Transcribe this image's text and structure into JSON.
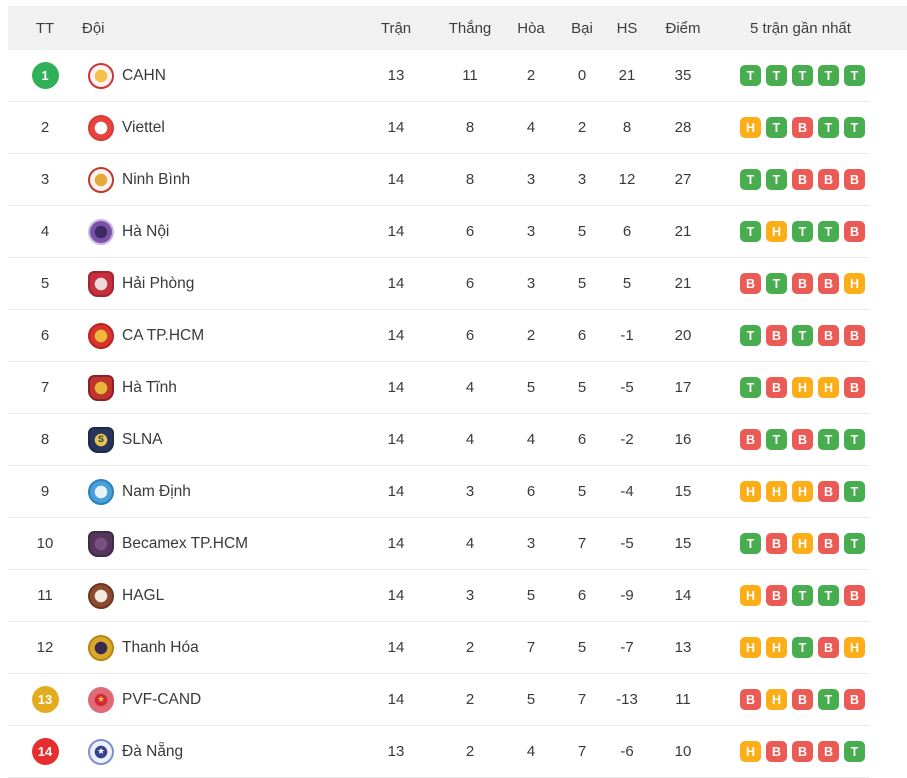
{
  "header": {
    "tt": "TT",
    "team": "Đội",
    "played": "Trận",
    "won": "Thắng",
    "drawn": "Hòa",
    "lost": "Bại",
    "gd": "HS",
    "points": "Điểm",
    "form": "5 trận gần nhất"
  },
  "form_colors": {
    "T": "#47ad4e",
    "H": "#fbae17",
    "B": "#ea5b55"
  },
  "form_labels": {
    "T": "win",
    "H": "draw",
    "B": "loss"
  },
  "pos_badge_colors": {
    "green": "#31b157",
    "gold": "#e3ac1e",
    "red": "#e62e2e"
  },
  "rows": [
    {
      "pos": "1",
      "pos_badge": "green",
      "team": "CAHN",
      "played": "13",
      "won": "11",
      "drawn": "2",
      "lost": "0",
      "gd": "21",
      "points": "35",
      "form": [
        "T",
        "T",
        "T",
        "T",
        "T"
      ],
      "logo": {
        "shape": "circle",
        "ring": "#cf3339",
        "outer": "#fdf3f0",
        "inner": "#f5c04a",
        "glyph": "",
        "glyph_color": ""
      }
    },
    {
      "pos": "2",
      "pos_badge": null,
      "team": "Viettel",
      "played": "14",
      "won": "8",
      "drawn": "4",
      "lost": "2",
      "gd": "8",
      "points": "28",
      "form": [
        "H",
        "T",
        "B",
        "T",
        "T"
      ],
      "logo": {
        "shape": "circle",
        "ring": "#d93a36",
        "outer": "#e8443f",
        "inner": "#ffffff",
        "glyph": "",
        "glyph_color": ""
      }
    },
    {
      "pos": "3",
      "pos_badge": null,
      "team": "Ninh Bình",
      "played": "14",
      "won": "8",
      "drawn": "3",
      "lost": "3",
      "gd": "12",
      "points": "27",
      "form": [
        "T",
        "T",
        "B",
        "B",
        "B"
      ],
      "logo": {
        "shape": "circle",
        "ring": "#c0392b",
        "outer": "#faf2ee",
        "inner": "#e3a93c",
        "glyph": "",
        "glyph_color": ""
      }
    },
    {
      "pos": "4",
      "pos_badge": null,
      "team": "Hà Nội",
      "played": "14",
      "won": "6",
      "drawn": "3",
      "lost": "5",
      "gd": "6",
      "points": "21",
      "form": [
        "T",
        "H",
        "T",
        "T",
        "B"
      ],
      "logo": {
        "shape": "circle",
        "ring": "#c9b6e4",
        "outer": "#7b52a8",
        "inner": "#3b2a63",
        "glyph": "",
        "glyph_color": ""
      }
    },
    {
      "pos": "5",
      "pos_badge": null,
      "team": "Hải Phòng",
      "played": "14",
      "won": "6",
      "drawn": "3",
      "lost": "5",
      "gd": "5",
      "points": "21",
      "form": [
        "B",
        "T",
        "B",
        "B",
        "H"
      ],
      "logo": {
        "shape": "shield",
        "ring": "#a02531",
        "outer": "#c6303e",
        "inner": "#f3dada",
        "glyph": "",
        "glyph_color": ""
      }
    },
    {
      "pos": "6",
      "pos_badge": null,
      "team": "CA TP.HCM",
      "played": "14",
      "won": "6",
      "drawn": "2",
      "lost": "6",
      "gd": "-1",
      "points": "20",
      "form": [
        "T",
        "B",
        "T",
        "B",
        "B"
      ],
      "logo": {
        "shape": "circle",
        "ring": "#b3271f",
        "outer": "#d8332f",
        "inner": "#f0b93a",
        "glyph": "",
        "glyph_color": ""
      }
    },
    {
      "pos": "7",
      "pos_badge": null,
      "team": "Hà Tĩnh",
      "played": "14",
      "won": "4",
      "drawn": "5",
      "lost": "5",
      "gd": "-5",
      "points": "17",
      "form": [
        "T",
        "B",
        "H",
        "H",
        "B"
      ],
      "logo": {
        "shape": "shield",
        "ring": "#8e1f24",
        "outer": "#c03430",
        "inner": "#e8b53a",
        "glyph": "",
        "glyph_color": ""
      }
    },
    {
      "pos": "8",
      "pos_badge": null,
      "team": "SLNA",
      "played": "14",
      "won": "4",
      "drawn": "4",
      "lost": "6",
      "gd": "-2",
      "points": "16",
      "form": [
        "B",
        "T",
        "B",
        "T",
        "T"
      ],
      "logo": {
        "shape": "shield",
        "ring": "#1d2a4a",
        "outer": "#27355c",
        "inner": "#e3c64a",
        "glyph": "S",
        "glyph_color": "#27355c"
      }
    },
    {
      "pos": "9",
      "pos_badge": null,
      "team": "Nam Định",
      "played": "14",
      "won": "3",
      "drawn": "6",
      "lost": "5",
      "gd": "-4",
      "points": "15",
      "form": [
        "H",
        "H",
        "H",
        "B",
        "T"
      ],
      "logo": {
        "shape": "circle",
        "ring": "#2f7fbf",
        "outer": "#4aa0d8",
        "inner": "#e8f3fb",
        "glyph": "",
        "glyph_color": ""
      }
    },
    {
      "pos": "10",
      "pos_badge": null,
      "team": "Becamex TP.HCM",
      "played": "14",
      "won": "4",
      "drawn": "3",
      "lost": "7",
      "gd": "-5",
      "points": "15",
      "form": [
        "T",
        "B",
        "H",
        "B",
        "T"
      ],
      "logo": {
        "shape": "shield",
        "ring": "#412a47",
        "outer": "#55365c",
        "inner": "#7b4f82",
        "glyph": "",
        "glyph_color": ""
      }
    },
    {
      "pos": "11",
      "pos_badge": null,
      "team": "HAGL",
      "played": "14",
      "won": "3",
      "drawn": "5",
      "lost": "6",
      "gd": "-9",
      "points": "14",
      "form": [
        "H",
        "B",
        "T",
        "T",
        "B"
      ],
      "logo": {
        "shape": "circle",
        "ring": "#6e3721",
        "outer": "#8d4a2f",
        "inner": "#f2e9df",
        "glyph": "",
        "glyph_color": ""
      }
    },
    {
      "pos": "12",
      "pos_badge": null,
      "team": "Thanh Hóa",
      "played": "14",
      "won": "2",
      "drawn": "7",
      "lost": "5",
      "gd": "-7",
      "points": "13",
      "form": [
        "H",
        "H",
        "T",
        "B",
        "H"
      ],
      "logo": {
        "shape": "circle",
        "ring": "#b8860b",
        "outer": "#d9a82e",
        "inner": "#3a2a52",
        "glyph": "",
        "glyph_color": ""
      }
    },
    {
      "pos": "13",
      "pos_badge": "gold",
      "team": "PVF-CAND",
      "played": "14",
      "won": "2",
      "drawn": "5",
      "lost": "7",
      "gd": "-13",
      "points": "11",
      "form": [
        "B",
        "H",
        "B",
        "T",
        "B"
      ],
      "logo": {
        "shape": "circle",
        "ring": "#e06a78",
        "outer": "#e06a78",
        "inner": "#cf2b35",
        "glyph": "★",
        "glyph_color": "#f5c04a"
      }
    },
    {
      "pos": "14",
      "pos_badge": "red",
      "team": "Đà Nẵng",
      "played": "13",
      "won": "2",
      "drawn": "4",
      "lost": "7",
      "gd": "-6",
      "points": "10",
      "form": [
        "H",
        "B",
        "B",
        "B",
        "T"
      ],
      "logo": {
        "shape": "circle",
        "ring": "#7c8fd4",
        "outer": "#eef1f9",
        "inner": "#33418f",
        "glyph": "★",
        "glyph_color": "#ffffff"
      }
    }
  ]
}
